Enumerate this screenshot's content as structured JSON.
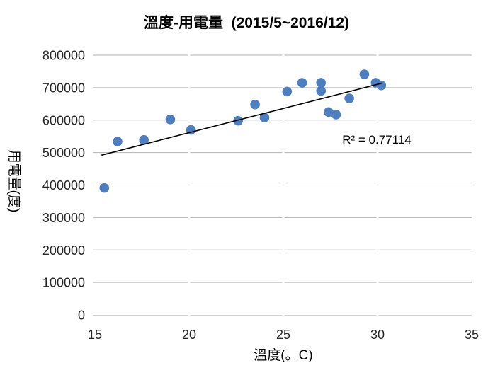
{
  "chart_data": {
    "type": "scatter",
    "title": "溫度-用電量  (2015/5~2016/12)",
    "xlabel": "溫度(。C)",
    "ylabel": "用電量(度)",
    "xlim": [
      15,
      35
    ],
    "ylim": [
      0,
      800000
    ],
    "x_ticks": [
      15,
      20,
      25,
      30,
      35
    ],
    "y_ticks": [
      0,
      100000,
      200000,
      300000,
      400000,
      500000,
      600000,
      700000,
      800000
    ],
    "grid": "horizontal-only",
    "legend": "none",
    "series": [
      {
        "name": "用電量",
        "points": [
          [
            15.5,
            391000
          ],
          [
            16.2,
            534000
          ],
          [
            17.6,
            539000
          ],
          [
            19.0,
            602000
          ],
          [
            20.1,
            570000
          ],
          [
            22.6,
            598000
          ],
          [
            23.5,
            648000
          ],
          [
            24.0,
            608000
          ],
          [
            25.2,
            688000
          ],
          [
            26.0,
            715000
          ],
          [
            27.0,
            715000
          ],
          [
            27.0,
            690000
          ],
          [
            27.4,
            625000
          ],
          [
            27.8,
            617000
          ],
          [
            28.5,
            667000
          ],
          [
            29.3,
            741000
          ],
          [
            29.9,
            715000
          ],
          [
            30.2,
            707000
          ]
        ]
      }
    ],
    "trendline": {
      "type": "linear",
      "x_start": 15.35,
      "y_start": 492000,
      "x_end": 30.25,
      "y_end": 714000,
      "r_squared_label": "R² = 0.77114"
    }
  },
  "colors": {
    "marker": "#4d7ebf",
    "gridline": "#b3b3b3",
    "axis_line": "#a6a6a6",
    "trendline": "#000000",
    "tick_text": "#262626",
    "background": "#ffffff"
  }
}
